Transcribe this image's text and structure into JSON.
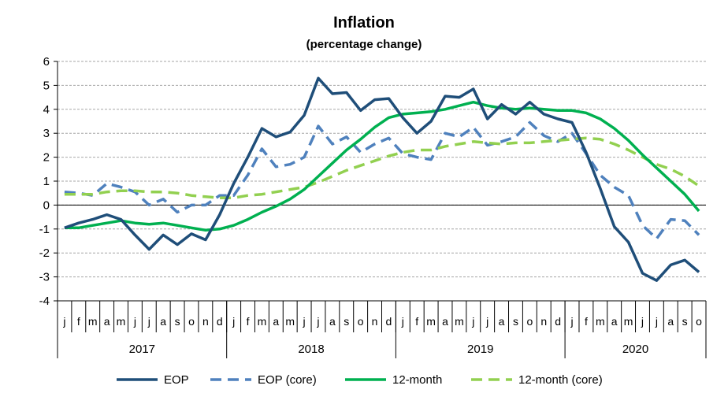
{
  "chart_data": {
    "type": "line",
    "title": "Inflation",
    "subtitle": "(percentage change)",
    "ylim": [
      -4,
      6
    ],
    "yticks": [
      6,
      5,
      4,
      3,
      2,
      1,
      0,
      -1,
      -2,
      -3,
      -4
    ],
    "grid": true,
    "legend_position": "bottom",
    "month_labels": [
      "j",
      "f",
      "m",
      "a",
      "m",
      "j",
      "j",
      "a",
      "s",
      "o",
      "n",
      "d",
      "j",
      "f",
      "m",
      "a",
      "m",
      "j",
      "j",
      "a",
      "s",
      "o",
      "n",
      "d",
      "j",
      "f",
      "m",
      "a",
      "m",
      "j",
      "j",
      "a",
      "s",
      "o",
      "n",
      "d",
      "j",
      "f",
      "m",
      "a",
      "m",
      "j",
      "j",
      "a",
      "s",
      "o"
    ],
    "years": [
      {
        "label": "2017",
        "start": 0,
        "end": 12
      },
      {
        "label": "2018",
        "start": 12,
        "end": 24
      },
      {
        "label": "2019",
        "start": 24,
        "end": 36
      },
      {
        "label": "2020",
        "start": 36,
        "end": 46
      }
    ],
    "series": [
      {
        "name": "EOP",
        "color": "#1F4E79",
        "style": "solid",
        "values": [
          -0.95,
          -0.75,
          -0.6,
          -0.4,
          -0.6,
          -1.25,
          -1.85,
          -1.25,
          -1.65,
          -1.2,
          -1.45,
          -0.4,
          0.9,
          2.0,
          3.2,
          2.85,
          3.05,
          3.75,
          5.3,
          4.65,
          4.7,
          3.95,
          4.4,
          4.45,
          3.65,
          3.0,
          3.5,
          4.55,
          4.5,
          4.85,
          3.6,
          4.2,
          3.8,
          4.3,
          3.8,
          3.6,
          3.45,
          2.2,
          0.7,
          -0.9,
          -1.55,
          -2.85,
          -3.15,
          -2.5,
          -2.3,
          -2.8
        ]
      },
      {
        "name": "EOP (core)",
        "color": "#4F81BD",
        "style": "dash",
        "values": [
          0.55,
          0.5,
          0.4,
          0.9,
          0.75,
          0.55,
          0.0,
          0.25,
          -0.3,
          0.0,
          0.0,
          0.4,
          0.4,
          1.25,
          2.35,
          1.6,
          1.7,
          2.0,
          3.3,
          2.55,
          2.85,
          2.2,
          2.55,
          2.8,
          2.15,
          2.0,
          1.9,
          3.0,
          2.85,
          3.25,
          2.5,
          2.65,
          2.85,
          3.45,
          2.9,
          2.65,
          3.0,
          2.15,
          1.25,
          0.75,
          0.4,
          -0.85,
          -1.4,
          -0.6,
          -0.65,
          -1.25
        ]
      },
      {
        "name": "12-month",
        "color": "#00B050",
        "style": "solid",
        "values": [
          -0.95,
          -0.95,
          -0.85,
          -0.75,
          -0.65,
          -0.75,
          -0.8,
          -0.75,
          -0.85,
          -0.95,
          -1.05,
          -1.0,
          -0.85,
          -0.6,
          -0.3,
          -0.05,
          0.25,
          0.65,
          1.2,
          1.75,
          2.3,
          2.75,
          3.25,
          3.65,
          3.8,
          3.85,
          3.9,
          4.0,
          4.15,
          4.3,
          4.15,
          4.05,
          4.0,
          4.05,
          4.0,
          3.95,
          3.95,
          3.85,
          3.6,
          3.2,
          2.7,
          2.1,
          1.55,
          1.0,
          0.45,
          -0.25
        ]
      },
      {
        "name": "12-month (core)",
        "color": "#92D050",
        "style": "dash",
        "values": [
          0.45,
          0.45,
          0.45,
          0.55,
          0.6,
          0.6,
          0.55,
          0.55,
          0.5,
          0.4,
          0.35,
          0.3,
          0.3,
          0.4,
          0.45,
          0.55,
          0.65,
          0.75,
          0.95,
          1.2,
          1.45,
          1.65,
          1.85,
          2.05,
          2.2,
          2.3,
          2.3,
          2.45,
          2.55,
          2.65,
          2.6,
          2.55,
          2.6,
          2.6,
          2.65,
          2.7,
          2.75,
          2.8,
          2.75,
          2.55,
          2.3,
          2.0,
          1.7,
          1.5,
          1.2,
          0.8
        ]
      }
    ]
  }
}
